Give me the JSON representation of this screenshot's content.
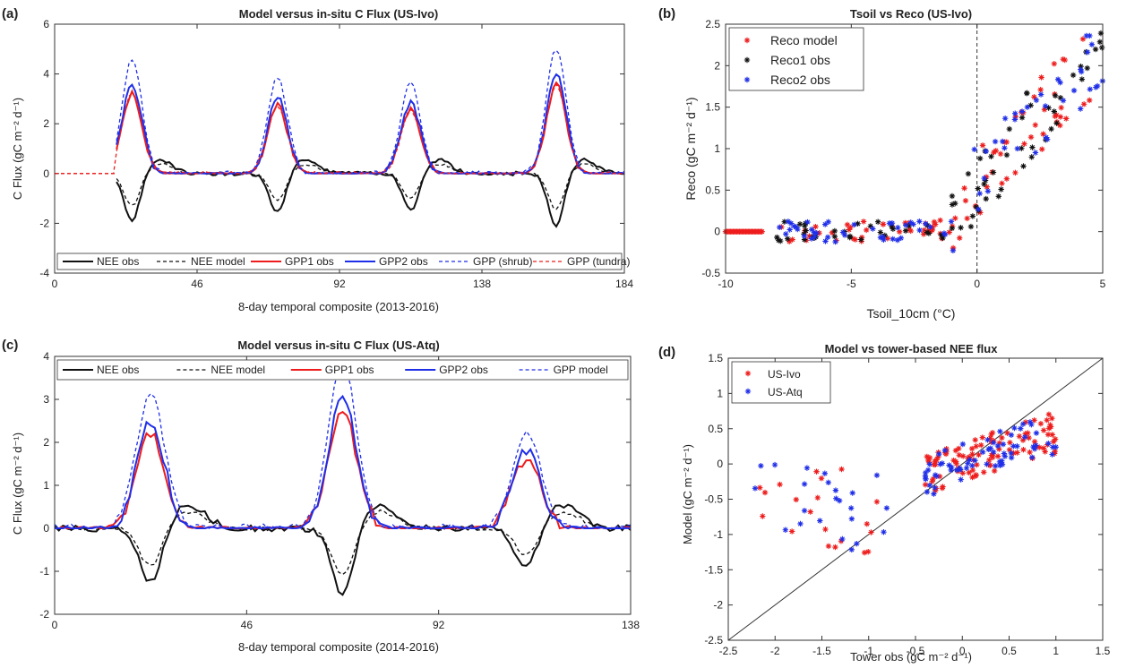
{
  "colors": {
    "red": "#ee1c1c",
    "blue": "#1f2ee8",
    "black": "#111111"
  },
  "chart_data": [
    {
      "panel": "(a)",
      "type": "line",
      "title": "Model versus in-situ C Flux (US-Ivo)",
      "xlabel": "8-day temporal composite (2013-2016)",
      "ylabel": "C Flux (gC m⁻² d⁻¹)",
      "xlim": [
        0,
        184
      ],
      "ylim": [
        -4,
        6
      ],
      "xticks": [
        "0",
        "46",
        "92",
        "138",
        "184"
      ],
      "yticks": [
        "-4",
        "-2",
        "0",
        "2",
        "4",
        "6"
      ],
      "legend_position": "bottom",
      "peaks": [
        25,
        72,
        115,
        162
      ],
      "series": [
        {
          "name": "NEE obs",
          "color": "black",
          "dash": "solid",
          "role": "nee_obs"
        },
        {
          "name": "NEE model",
          "color": "black",
          "dash": "dashed",
          "role": "nee_model"
        },
        {
          "name": "GPP1 obs",
          "color": "red",
          "dash": "solid",
          "role": "gpp1"
        },
        {
          "name": "GPP2 obs",
          "color": "blue",
          "dash": "solid",
          "role": "gpp2"
        },
        {
          "name": "GPP (shrub)",
          "color": "blue",
          "dash": "dashed",
          "role": "gpp_model"
        },
        {
          "name": "GPP (tundra)",
          "color": "red",
          "dash": "dashed",
          "role": "gpp_tundra"
        }
      ]
    },
    {
      "panel": "(b)",
      "type": "scatter",
      "title": "Tsoil vs Reco (US-Ivo)",
      "xlabel": "Tsoil_10cm (°C)",
      "ylabel": "Reco (gC m⁻² d⁻¹)",
      "xlim": [
        -10,
        5
      ],
      "ylim": [
        -0.5,
        2.5
      ],
      "xticks": [
        "-10",
        "-5",
        "0",
        "5"
      ],
      "yticks": [
        "-0.5",
        "0",
        "0.5",
        "1",
        "1.5",
        "2",
        "2.5"
      ],
      "legend_position": "top-left",
      "vline_x": 0,
      "series": [
        {
          "name": "Reco model",
          "color": "red"
        },
        {
          "name": "Reco1 obs",
          "color": "black"
        },
        {
          "name": "Reco2 obs",
          "color": "blue"
        }
      ]
    },
    {
      "panel": "(c)",
      "type": "line",
      "title": "Model versus in-situ C Flux (US-Atq)",
      "xlabel": "8-day temporal composite (2014-2016)",
      "ylabel": "C Flux (gC m⁻² d⁻¹)",
      "xlim": [
        0,
        138
      ],
      "ylim": [
        -2,
        4
      ],
      "xticks": [
        "0",
        "46",
        "92",
        "138"
      ],
      "yticks": [
        "-2",
        "-1",
        "0",
        "1",
        "2",
        "3",
        "4"
      ],
      "legend_position": "top",
      "peaks": [
        23,
        69,
        113
      ],
      "series": [
        {
          "name": "NEE obs",
          "color": "black",
          "dash": "solid",
          "role": "nee_obs"
        },
        {
          "name": "NEE model",
          "color": "black",
          "dash": "dashed",
          "role": "nee_model"
        },
        {
          "name": "GPP1 obs",
          "color": "red",
          "dash": "solid",
          "role": "gpp1"
        },
        {
          "name": "GPP2 obs",
          "color": "blue",
          "dash": "solid",
          "role": "gpp2"
        },
        {
          "name": "GPP model",
          "color": "blue",
          "dash": "dashed",
          "role": "gpp_model"
        }
      ]
    },
    {
      "panel": "(d)",
      "type": "scatter",
      "title": "Model vs tower-based NEE flux",
      "xlabel": "Tower obs (gC m⁻² d⁻¹)",
      "ylabel": "Model (gC m⁻² d⁻¹)",
      "xlim": [
        -2.5,
        1.5
      ],
      "ylim": [
        -2.5,
        1.5
      ],
      "xticks": [
        "-2.5",
        "-2",
        "-1.5",
        "-1",
        "-0.5",
        "0",
        "0.5",
        "1",
        "1.5"
      ],
      "yticks": [
        "-2.5",
        "-2",
        "-1.5",
        "-1",
        "-0.5",
        "0",
        "0.5",
        "1",
        "1.5"
      ],
      "legend_position": "top-left",
      "one_to_one_line": true,
      "series": [
        {
          "name": "US-Ivo",
          "color": "red"
        },
        {
          "name": "US-Atq",
          "color": "blue"
        }
      ]
    }
  ]
}
